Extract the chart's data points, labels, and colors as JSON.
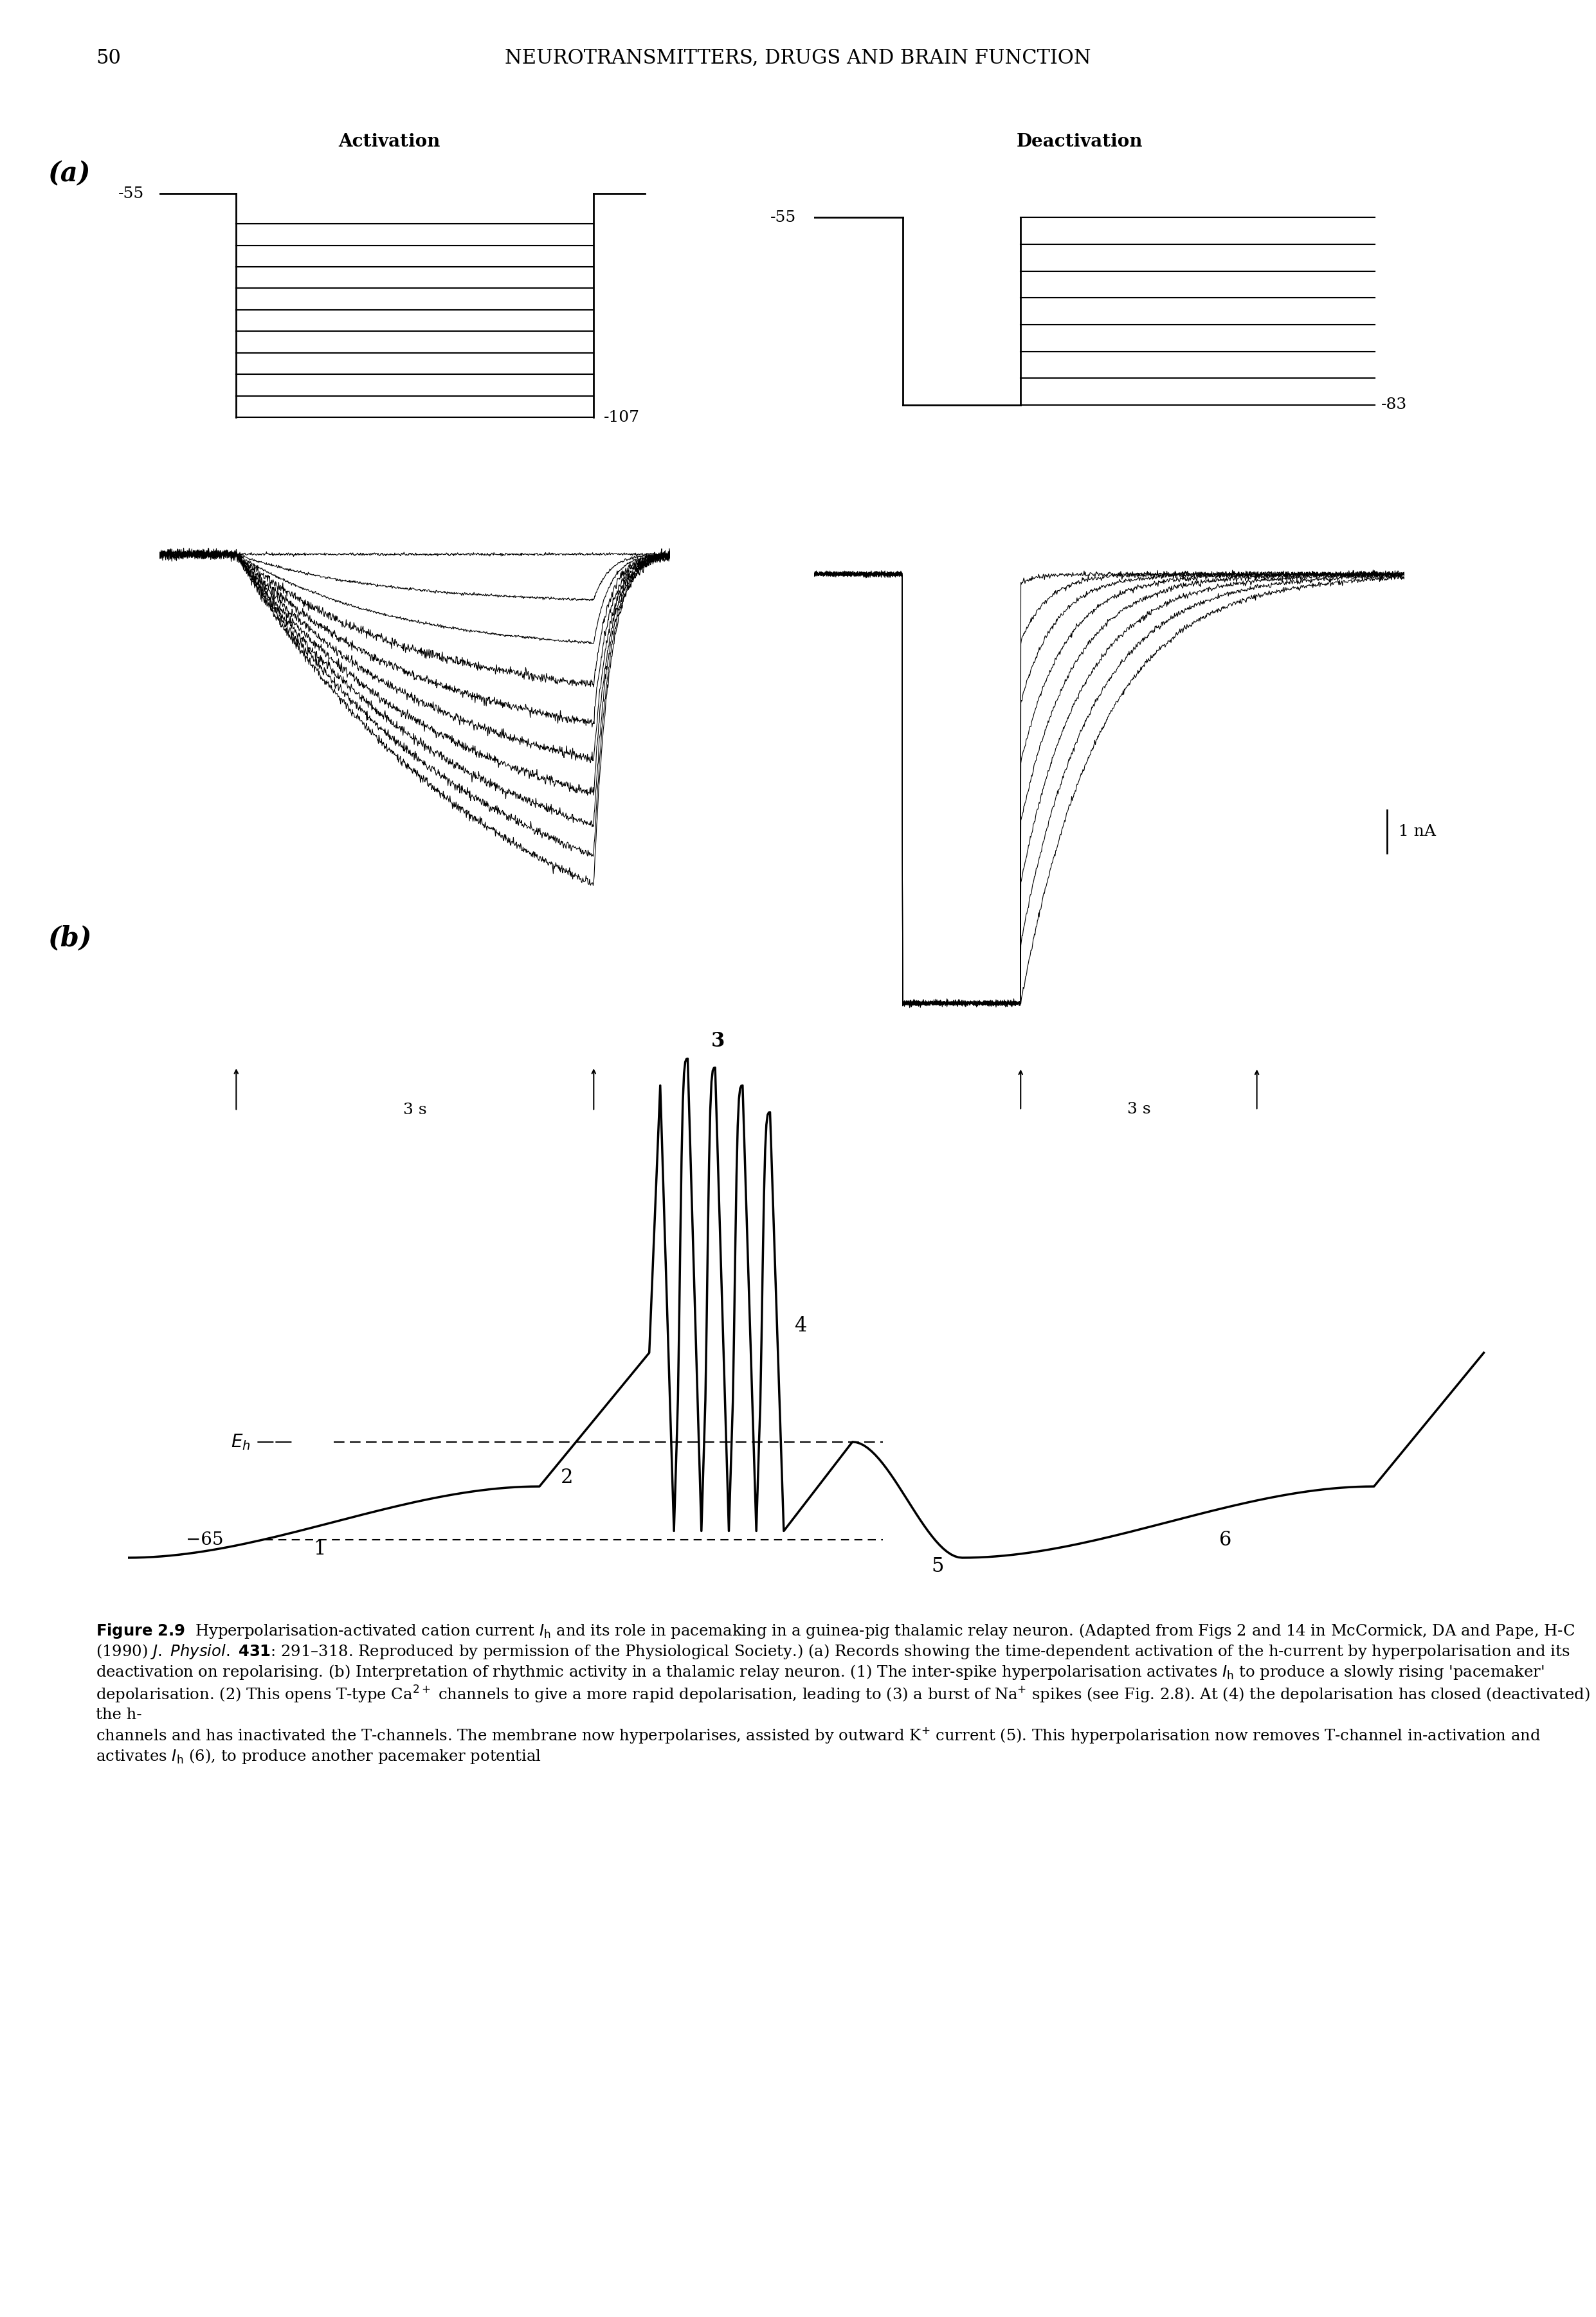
{
  "page_number": "50",
  "header": "NEUROTRANSMITTERS, DRUGS AND BRAIN FUNCTION",
  "label_a": "(a)",
  "label_b": "(b)",
  "activation_label": "Activation",
  "deactivation_label": "Deactivation",
  "volt_label_act_top": "-55",
  "volt_label_act_bot": "-107",
  "volt_label_deact_top": "-55",
  "volt_label_deact_right": "-83",
  "scale_label": "1 nA",
  "time_label": "3 s",
  "Eh_label": "Eₕ———",
  "level_65": "-65",
  "numbers": [
    "1",
    "2",
    "3",
    "4",
    "5",
    "6"
  ],
  "caption_bold": "Figure 2.9",
  "caption_text": "  Hyperpolarisation-activated cation current ᴵₕ and its role in pacemaking in a guinea-pig thalamic relay neuron. (Adapted from Figs 2 and 14 in McCormick, DA and Pape, H-C (1990) ᴵ. ᴵᴵᴵᴵᴵᴵᴵ. 431: 291–318. Reproduced by permission of the Physiological Society.) (a) Records showing the time-dependent activation of the h-current by hyperpolarisation and its deactivation on repolarising. (b) Interpretation of rhythmic activity in a thalamic relay neuron. (1) The inter-spike hyperpolarisation activates ᴵₕ to produce a slowly rising ‘pacemaker’ depolarisation. (2) This opens T-type Ca²⁺ channels to give a more rapid depolarisation, leading to (3) a burst of Na⁺ spikes (see Fig. 2.8). At (4) the depolarisation has closed (deactivated) the h-channels and has inactivated the T-channels. The membrane now hyperpolarises, assisted by outward K⁺ current (5). This hyperpolarisation now removes T-channel in-activation and activates ᴵₕ (6), to produce another pacemaker potential",
  "bg_color": "#ffffff",
  "line_color": "#000000"
}
